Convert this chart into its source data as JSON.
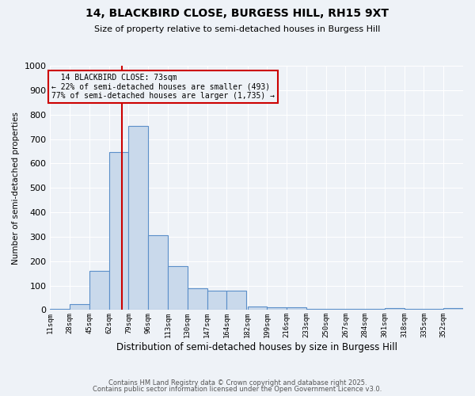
{
  "title1": "14, BLACKBIRD CLOSE, BURGESS HILL, RH15 9XT",
  "title2": "Size of property relative to semi-detached houses in Burgess Hill",
  "xlabel": "Distribution of semi-detached houses by size in Burgess Hill",
  "ylabel": "Number of semi-detached properties",
  "bin_labels": [
    "11sqm",
    "28sqm",
    "45sqm",
    "62sqm",
    "79sqm",
    "96sqm",
    "113sqm",
    "130sqm",
    "147sqm",
    "164sqm",
    "182sqm",
    "199sqm",
    "216sqm",
    "233sqm",
    "250sqm",
    "267sqm",
    "284sqm",
    "301sqm",
    "318sqm",
    "335sqm",
    "352sqm"
  ],
  "bin_edges": [
    11,
    28,
    45,
    62,
    79,
    96,
    113,
    130,
    147,
    164,
    182,
    199,
    216,
    233,
    250,
    267,
    284,
    301,
    318,
    335,
    352
  ],
  "bar_values": [
    5,
    25,
    160,
    645,
    755,
    305,
    180,
    90,
    80,
    80,
    15,
    12,
    12,
    5,
    5,
    5,
    5,
    8,
    5,
    5,
    8
  ],
  "bar_color": "#c9d9eb",
  "bar_edge_color": "#5b8fc9",
  "property_size": 73,
  "property_label": "14 BLACKBIRD CLOSE: 73sqm",
  "pct_smaller": 22,
  "pct_larger": 77,
  "n_smaller": 493,
  "n_larger": 1735,
  "vline_color": "#cc0000",
  "annotation_box_color": "#cc0000",
  "background_color": "#eef2f7",
  "ylim": [
    0,
    1000
  ],
  "yticks": [
    0,
    100,
    200,
    300,
    400,
    500,
    600,
    700,
    800,
    900,
    1000
  ],
  "footer1": "Contains HM Land Registry data © Crown copyright and database right 2025.",
  "footer2": "Contains public sector information licensed under the Open Government Licence v3.0."
}
